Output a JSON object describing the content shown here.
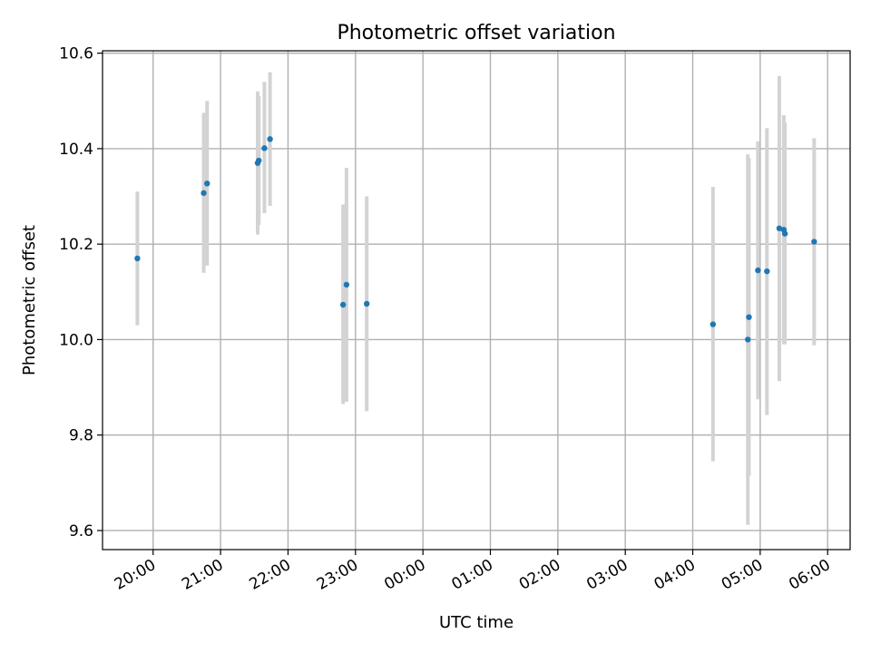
{
  "chart_data": {
    "type": "scatter",
    "title": "Photometric offset variation",
    "xlabel": "UTC time",
    "ylabel": "Photometric offset",
    "grid": true,
    "x_date": "2000-01-01",
    "xlim": [
      "19:15",
      "06:20"
    ],
    "ylim": [
      9.56,
      10.605
    ],
    "x_ticks": [
      "20:00",
      "21:00",
      "22:00",
      "23:00",
      "00:00",
      "01:00",
      "02:00",
      "03:00",
      "04:00",
      "05:00",
      "06:00"
    ],
    "y_ticks": [
      9.6,
      9.8,
      10.0,
      10.2,
      10.4,
      10.6
    ],
    "colors": {
      "points": "#1f77b4",
      "error_bars": "#d3d3d3"
    },
    "points": [
      {
        "x": "19:46",
        "y": 10.17,
        "ylow": 10.03,
        "yhigh": 10.31
      },
      {
        "x": "20:45",
        "y": 10.307,
        "ylow": 10.14,
        "yhigh": 10.475
      },
      {
        "x": "20:48",
        "y": 10.327,
        "ylow": 10.155,
        "yhigh": 10.5
      },
      {
        "x": "21:33",
        "y": 10.37,
        "ylow": 10.22,
        "yhigh": 10.52
      },
      {
        "x": "21:34",
        "y": 10.375,
        "ylow": 10.24,
        "yhigh": 10.51
      },
      {
        "x": "21:39",
        "y": 10.401,
        "ylow": 10.265,
        "yhigh": 10.54
      },
      {
        "x": "21:44",
        "y": 10.42,
        "ylow": 10.28,
        "yhigh": 10.56
      },
      {
        "x": "22:49",
        "y": 10.073,
        "ylow": 9.865,
        "yhigh": 10.283
      },
      {
        "x": "22:52",
        "y": 10.115,
        "ylow": 9.87,
        "yhigh": 10.36
      },
      {
        "x": "23:10",
        "y": 10.075,
        "ylow": 9.85,
        "yhigh": 10.3
      },
      {
        "x": "04:18",
        "y": 10.032,
        "ylow": 9.745,
        "yhigh": 10.32
      },
      {
        "x": "04:49",
        "y": 10.0,
        "ylow": 9.612,
        "yhigh": 10.388
      },
      {
        "x": "04:50",
        "y": 10.047,
        "ylow": 9.715,
        "yhigh": 10.38
      },
      {
        "x": "04:58",
        "y": 10.145,
        "ylow": 9.875,
        "yhigh": 10.415
      },
      {
        "x": "05:06",
        "y": 10.143,
        "ylow": 9.842,
        "yhigh": 10.443
      },
      {
        "x": "05:17",
        "y": 10.233,
        "ylow": 9.913,
        "yhigh": 10.552
      },
      {
        "x": "05:21",
        "y": 10.23,
        "ylow": 9.99,
        "yhigh": 10.47
      },
      {
        "x": "05:22",
        "y": 10.222,
        "ylow": 9.99,
        "yhigh": 10.455
      },
      {
        "x": "05:48",
        "y": 10.205,
        "ylow": 9.988,
        "yhigh": 10.422
      }
    ]
  }
}
